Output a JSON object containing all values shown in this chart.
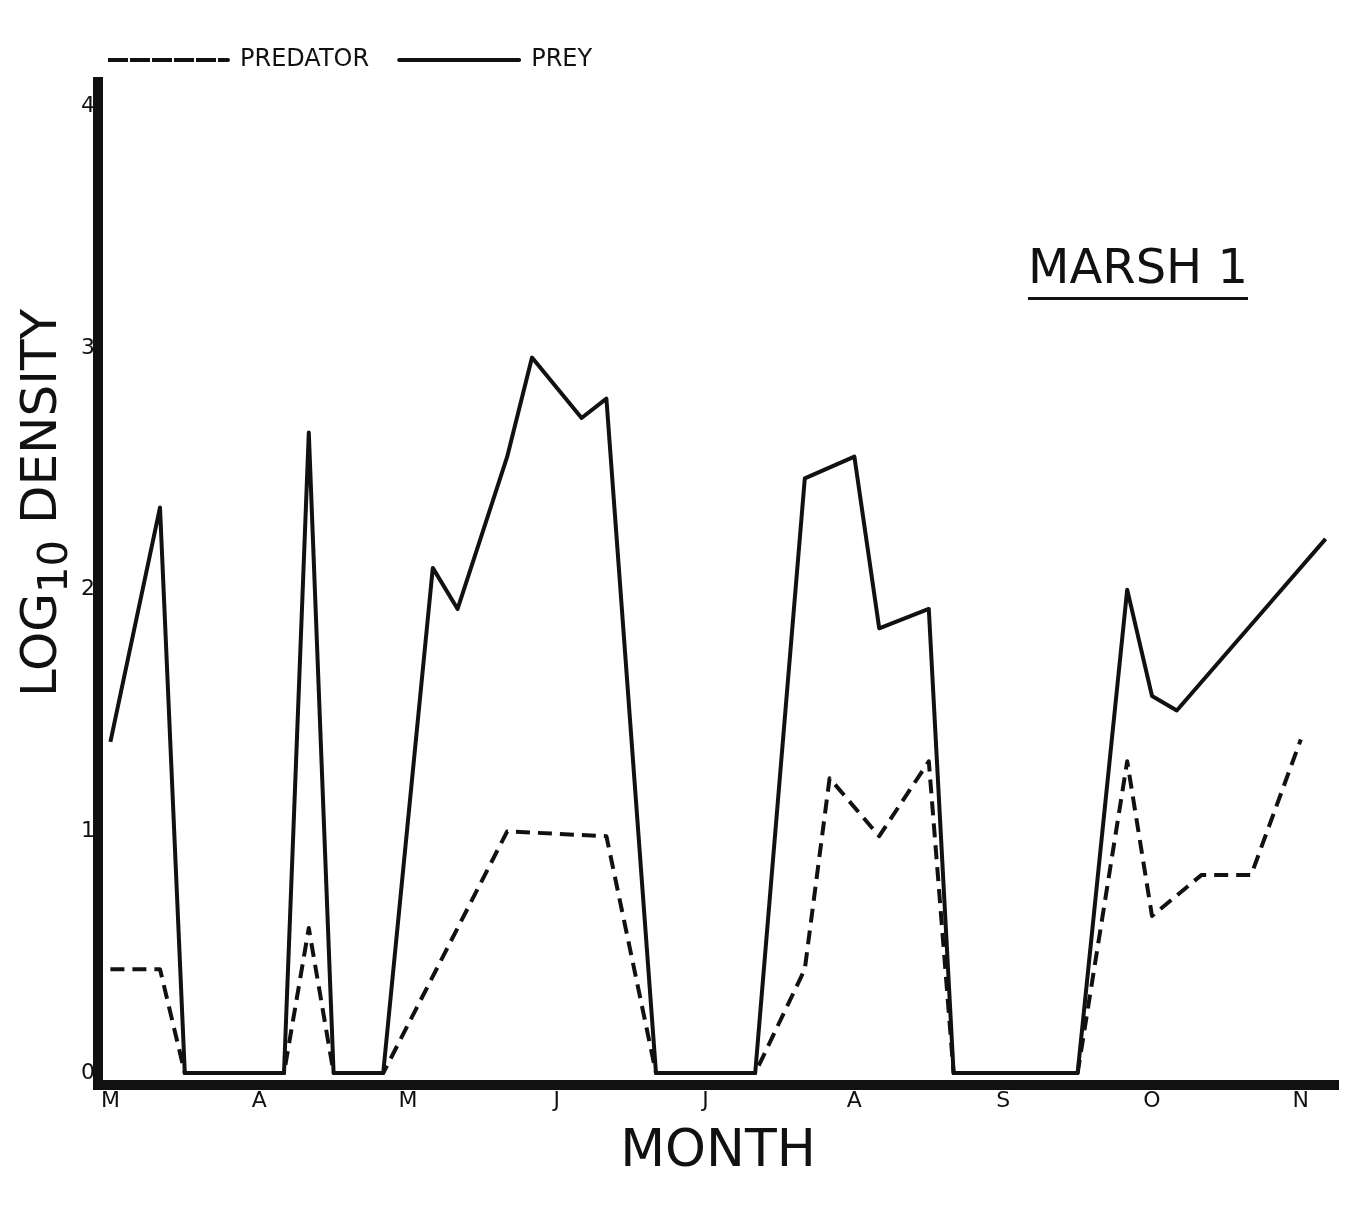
{
  "chart_data": {
    "type": "line",
    "title": "MARSH 1",
    "xlabel": "MONTH",
    "ylabel": "LOG$_{10}$ DENSITY",
    "categories": [
      "M",
      null,
      null,
      null,
      null,
      null,
      "A",
      null,
      null,
      null,
      null,
      null,
      "M",
      null,
      null,
      null,
      null,
      null,
      "J",
      null,
      null,
      null,
      null,
      null,
      "J",
      null,
      null,
      null,
      null,
      null,
      "A",
      null,
      null,
      null,
      null,
      null,
      "S",
      null,
      null,
      null,
      null,
      null,
      "O",
      null,
      null,
      null,
      null,
      null,
      "N",
      null
    ],
    "ylim": [
      -0.05,
      4.1
    ],
    "yticks": [
      0,
      1,
      2,
      3,
      4
    ],
    "grid": false,
    "legend": "top left",
    "marker": "none",
    "series": [
      {
        "name": "PREDATOR",
        "color": "#111111",
        "line_style": "dashed",
        "values": [
          0.43,
          null,
          0.43,
          0,
          null,
          null,
          null,
          0,
          0.6,
          0,
          null,
          0,
          null,
          null,
          null,
          null,
          1.0,
          null,
          null,
          null,
          0.98,
          null,
          0,
          null,
          null,
          null,
          0,
          null,
          0.43,
          1.22,
          null,
          0.98,
          null,
          1.29,
          0,
          null,
          null,
          null,
          null,
          0,
          null,
          1.29,
          0.65,
          null,
          0.82,
          null,
          0.82,
          null,
          1.38,
          null
        ]
      },
      {
        "name": "PREY",
        "color": "#111111",
        "line_style": "solid",
        "values": [
          1.37,
          null,
          2.34,
          0,
          null,
          null,
          null,
          0,
          2.65,
          0,
          null,
          0,
          null,
          2.09,
          1.92,
          null,
          2.55,
          2.96,
          null,
          2.71,
          2.79,
          null,
          0,
          null,
          null,
          null,
          0,
          null,
          2.46,
          null,
          2.55,
          1.84,
          null,
          1.92,
          0,
          null,
          null,
          null,
          null,
          0,
          null,
          2.0,
          1.56,
          1.5,
          null,
          null,
          null,
          null,
          null,
          2.21
        ]
      }
    ]
  }
}
